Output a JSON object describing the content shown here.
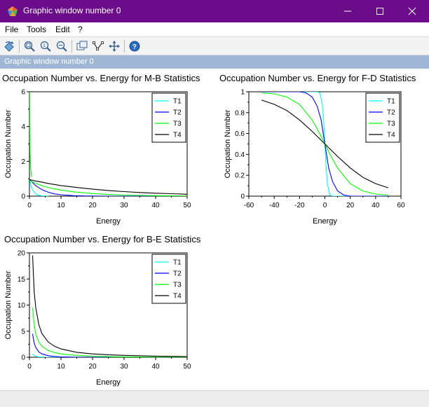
{
  "window": {
    "title": "Graphic window number 0",
    "accent": "#6b0d8a"
  },
  "menu": [
    "File",
    "Tools",
    "Edit",
    "?"
  ],
  "toolbar": [
    "rotate-icon",
    "zoom-in-icon",
    "zoom-original-icon",
    "zoom-area-icon",
    "datatip-icon",
    "edit-curve-icon",
    "pan-icon",
    "help-icon"
  ],
  "infobar": {
    "text": "Graphic window number 0"
  },
  "chart_data": [
    {
      "type": "line",
      "title": "Occupation Number vs. Energy for M-B Statistics",
      "xlabel": "Energy",
      "ylabel": "Occupation Number",
      "xlim": [
        0,
        50
      ],
      "ylim": [
        0,
        6
      ],
      "xticks": [
        0,
        10,
        20,
        30,
        40,
        50
      ],
      "yticks": [
        0,
        2,
        4,
        6
      ],
      "legend_position": "top-right",
      "series": [
        {
          "name": "T1",
          "color": "#00ffff",
          "x": [
            0,
            0.5,
            1,
            2,
            3,
            4,
            5,
            6
          ],
          "y": [
            1,
            0.61,
            0.37,
            0.14,
            0.05,
            0.02,
            0.01,
            0
          ]
        },
        {
          "name": "T2",
          "color": "#0000ff",
          "x": [
            0,
            1,
            2,
            4,
            6,
            8,
            10,
            14,
            18,
            22,
            26,
            30,
            35,
            40,
            45,
            50
          ],
          "y": [
            0.95,
            0.78,
            0.6,
            0.37,
            0.22,
            0.13,
            0.08,
            0.03,
            0.01,
            0.005,
            0,
            0,
            0,
            0,
            0,
            0
          ]
        },
        {
          "name": "T3",
          "color": "#00ff00",
          "x": [
            0,
            2,
            4,
            6,
            8,
            10,
            14,
            18,
            22,
            26,
            30,
            35,
            40,
            45,
            50
          ],
          "y": [
            0.9,
            0.74,
            0.6,
            0.5,
            0.42,
            0.35,
            0.25,
            0.18,
            0.13,
            0.09,
            0.06,
            0.04,
            0.03,
            0.02,
            0.01
          ]
        },
        {
          "name": "T4",
          "color": "#000000",
          "x": [
            0,
            2,
            4,
            6,
            8,
            10,
            14,
            18,
            22,
            26,
            30,
            35,
            40,
            45,
            50
          ],
          "y": [
            0.95,
            0.87,
            0.8,
            0.73,
            0.67,
            0.61,
            0.52,
            0.44,
            0.37,
            0.31,
            0.26,
            0.21,
            0.17,
            0.14,
            0.11
          ]
        },
        {
          "name": "",
          "color": "#00ff00",
          "x": [
            0.05,
            0.1,
            0.2,
            0.4,
            0.7
          ],
          "y": [
            6,
            4.2,
            2.5,
            1.6,
            1.1
          ]
        }
      ]
    },
    {
      "type": "line",
      "title": "Occupation Number vs. Energy for F-D Statistics",
      "xlabel": "Energy",
      "ylabel": "Occupation Number",
      "xlim": [
        -60,
        60
      ],
      "ylim": [
        0,
        1
      ],
      "xticks": [
        -60,
        -40,
        -20,
        0,
        20,
        40,
        60
      ],
      "yticks": [
        0,
        0.2,
        0.4,
        0.6,
        0.8,
        1
      ],
      "legend_position": "top-right",
      "series": [
        {
          "name": "T1",
          "color": "#00ffff",
          "x": [
            -50,
            -6,
            -4,
            -2,
            -1,
            0,
            1,
            2,
            4,
            6,
            50
          ],
          "y": [
            1,
            1,
            0.99,
            0.88,
            0.73,
            0.5,
            0.27,
            0.12,
            0.01,
            0,
            0
          ]
        },
        {
          "name": "T2",
          "color": "#0000ff",
          "x": [
            -50,
            -20,
            -15,
            -10,
            -6,
            -3,
            0,
            3,
            6,
            10,
            15,
            20,
            50
          ],
          "y": [
            1,
            1,
            0.99,
            0.95,
            0.86,
            0.73,
            0.5,
            0.27,
            0.14,
            0.05,
            0.01,
            0,
            0
          ]
        },
        {
          "name": "T3",
          "color": "#00ff00",
          "x": [
            -50,
            -40,
            -30,
            -20,
            -10,
            -5,
            0,
            5,
            10,
            20,
            30,
            40,
            50
          ],
          "y": [
            0.99,
            0.98,
            0.95,
            0.88,
            0.73,
            0.62,
            0.5,
            0.38,
            0.27,
            0.12,
            0.05,
            0.02,
            0.01
          ]
        },
        {
          "name": "T4",
          "color": "#000000",
          "x": [
            -50,
            -40,
            -30,
            -20,
            -10,
            0,
            10,
            20,
            30,
            40,
            50
          ],
          "y": [
            0.92,
            0.88,
            0.82,
            0.73,
            0.62,
            0.5,
            0.38,
            0.27,
            0.18,
            0.12,
            0.08
          ]
        }
      ]
    },
    {
      "type": "line",
      "title": "Occupation Number vs. Energy for B-E Statistics",
      "xlabel": "Energy",
      "ylabel": "Occupation Number",
      "xlim": [
        0,
        50
      ],
      "ylim": [
        0,
        20
      ],
      "xticks": [
        0,
        10,
        20,
        30,
        40,
        50
      ],
      "yticks": [
        0,
        5,
        10,
        15,
        20
      ],
      "legend_position": "top-right",
      "series": [
        {
          "name": "T1",
          "color": "#00ffff",
          "x": [
            1,
            2,
            3,
            5,
            8,
            12,
            50
          ],
          "y": [
            0.6,
            0.16,
            0.05,
            0.01,
            0,
            0,
            0
          ]
        },
        {
          "name": "T2",
          "color": "#0000ff",
          "x": [
            1,
            1.5,
            2,
            3,
            4,
            6,
            8,
            10,
            15,
            20,
            30,
            50
          ],
          "y": [
            4.5,
            2.7,
            1.9,
            1.0,
            0.65,
            0.3,
            0.15,
            0.08,
            0.02,
            0.01,
            0,
            0
          ]
        },
        {
          "name": "T3",
          "color": "#00ff00",
          "x": [
            1,
            1.5,
            2,
            3,
            4,
            6,
            8,
            10,
            15,
            20,
            25,
            30,
            40,
            50
          ],
          "y": [
            9.5,
            6.2,
            4.5,
            2.9,
            2.1,
            1.3,
            0.9,
            0.65,
            0.35,
            0.2,
            0.12,
            0.08,
            0.03,
            0.01
          ]
        },
        {
          "name": "T4",
          "color": "#000000",
          "x": [
            1,
            1.5,
            2,
            3,
            4,
            6,
            8,
            10,
            15,
            20,
            25,
            30,
            40,
            50
          ],
          "y": [
            19.5,
            12.5,
            9.5,
            6.2,
            4.5,
            2.9,
            2.1,
            1.6,
            0.95,
            0.65,
            0.48,
            0.36,
            0.22,
            0.14
          ]
        }
      ]
    }
  ]
}
